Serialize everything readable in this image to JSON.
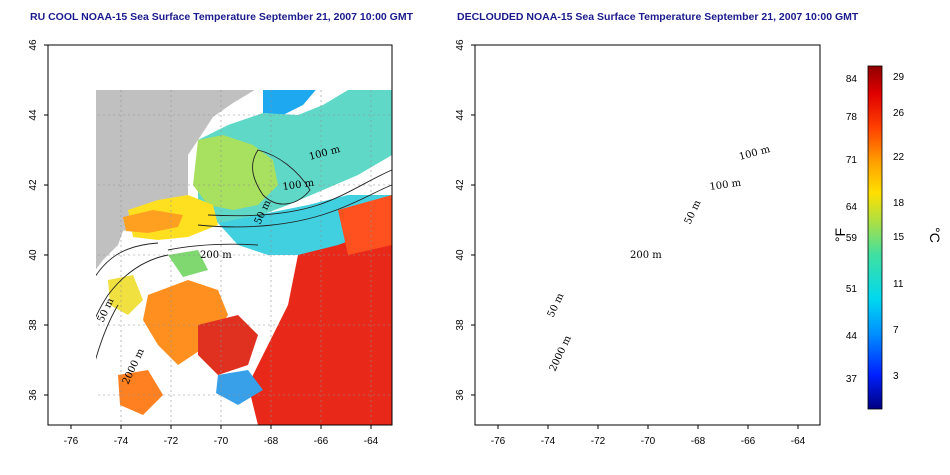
{
  "panels": [
    {
      "title": "RU COOL NOAA-15 Sea Surface Temperature September 21, 2007 10:00 GMT",
      "contour_labels": [
        "100 m",
        "100 m",
        "50 m",
        "200 m",
        "50 m",
        "2000 m"
      ]
    },
    {
      "title": "DECLOUDED NOAA-15 Sea Surface Temperature September 21, 2007 10:00 GMT",
      "contour_labels": [
        "100 m",
        "100 m",
        "50 m",
        "200 m",
        "50 m",
        "2000 m"
      ]
    }
  ],
  "axes": {
    "lat_ticks": [
      "46",
      "44",
      "42",
      "40",
      "38",
      "36"
    ],
    "lon_ticks": [
      "-76",
      "-74",
      "-72",
      "-70",
      "-68",
      "-66",
      "-64"
    ]
  },
  "colorbar": {
    "fahrenheit_ticks": [
      "84",
      "78",
      "71",
      "64",
      "59",
      "51",
      "44",
      "37"
    ],
    "celsius_ticks": [
      "29",
      "26",
      "22",
      "18",
      "15",
      "11",
      "7",
      "3"
    ],
    "fahrenheit_unit": "°F",
    "celsius_unit": "°C"
  },
  "colors": {
    "land": "#c0c0c0",
    "title": "#1a1a8c"
  }
}
